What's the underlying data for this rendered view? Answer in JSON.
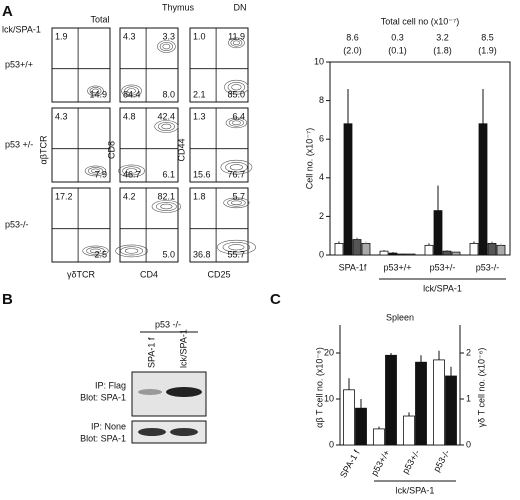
{
  "panel_labels": [
    "A",
    "B",
    "C"
  ],
  "flow": {
    "strain_label": "lck/SPA-1",
    "tissue": "Thymus",
    "total_title": "Total",
    "dn_title": "DN",
    "axes": [
      {
        "x": "γδTCR",
        "y": "αβTCR"
      },
      {
        "x": "CD4",
        "y": "CD8"
      },
      {
        "x": "CD25",
        "y": "CD44"
      }
    ],
    "rows": [
      {
        "label": "p53+/+",
        "plots": [
          {
            "ul": "1.9",
            "lr": "14.9"
          },
          {
            "ul": "4.3",
            "ur": "3.3",
            "ll": "84.4",
            "lr": "8.0"
          },
          {
            "ul": "1.0",
            "ur": "11.9",
            "ll": "2.1",
            "lr": "85.0"
          }
        ]
      },
      {
        "label": "p53 +/-",
        "plots": [
          {
            "ul": "4.3",
            "lr": "7.9"
          },
          {
            "ul": "4.8",
            "ur": "42.4",
            "ll": "46.7",
            "lr": "6.1"
          },
          {
            "ul": "1.3",
            "ur": "6.4",
            "ll": "15.6",
            "lr": "76.7"
          }
        ]
      },
      {
        "label": "p53-/-",
        "plots": [
          {
            "ul": "17.2",
            "lr": "2.5"
          },
          {
            "ul": "4.2",
            "ur": "82.1",
            "lr": "5.0"
          },
          {
            "ul": "1.8",
            "ur": "5.7",
            "ll": "36.8",
            "lr": "55.7"
          }
        ]
      }
    ]
  },
  "blot": {
    "genotype": "p53 -/-",
    "lanes": [
      "SPA-1 f",
      "lck/SPA-1"
    ],
    "rows": [
      {
        "ip": "IP: Flag",
        "blot": "Blot: SPA-1"
      },
      {
        "ip": "IP: None",
        "blot": "Blot: SPA-1"
      }
    ]
  },
  "chart_data": [
    {
      "type": "bar",
      "header": "Total cell no (x10⁻⁷)",
      "totals": [
        "8.6",
        "0.3",
        "3.2",
        "8.5"
      ],
      "totals_sd": [
        "(2.0)",
        "(0.1)",
        "(1.8)",
        "(1.9)"
      ],
      "ylabel": "Cell no. (x10⁻⁷)",
      "categories": [
        "SPA-1f",
        "p53+/+",
        "p53+/-",
        "p53-/-"
      ],
      "group_label": "lck/SPA-1",
      "ylim": [
        0,
        10
      ],
      "yticks": [
        0,
        2,
        4,
        6,
        8,
        10
      ],
      "series": [
        {
          "color": "#ffffff",
          "values": [
            0.6,
            0.2,
            0.5,
            0.6
          ],
          "errors": [
            0.1,
            0.05,
            0.1,
            0.1
          ]
        },
        {
          "color": "#111111",
          "values": [
            6.8,
            0.1,
            2.3,
            6.8
          ],
          "errors": [
            1.8,
            0.05,
            1.3,
            1.8
          ]
        },
        {
          "color": "#555555",
          "values": [
            0.8,
            0.05,
            0.2,
            0.6
          ],
          "errors": [
            0.1,
            0.02,
            0.05,
            0.1
          ]
        },
        {
          "color": "#aaaaaa",
          "values": [
            0.6,
            0.05,
            0.15,
            0.5
          ],
          "errors": [
            0.1,
            0.02,
            0.05,
            0.1
          ]
        }
      ]
    },
    {
      "type": "bar",
      "title": "Spleen",
      "ylabel": "αβ T cell no. (x10⁻⁶)",
      "y2label": "γδ T cell no. (x10⁻⁶)",
      "categories": [
        "SPA-1 f",
        "p53+/+",
        "p53+/-",
        "p53-/-"
      ],
      "group_label": "lck/SPA-1",
      "ylim": [
        0,
        25
      ],
      "yticks": [
        0,
        10,
        20
      ],
      "y2lim": [
        0,
        2.5
      ],
      "y2ticks": [
        0,
        1,
        2
      ],
      "series": [
        {
          "color": "#ffffff",
          "values": [
            12,
            3.5,
            6.3,
            18.5
          ],
          "errors": [
            2.5,
            0.5,
            0.8,
            2
          ]
        },
        {
          "color": "#111111",
          "axis": "y2",
          "values": [
            0.8,
            1.95,
            1.8,
            1.5
          ],
          "errors": [
            0.2,
            0.05,
            0.15,
            0.2
          ]
        }
      ]
    }
  ]
}
